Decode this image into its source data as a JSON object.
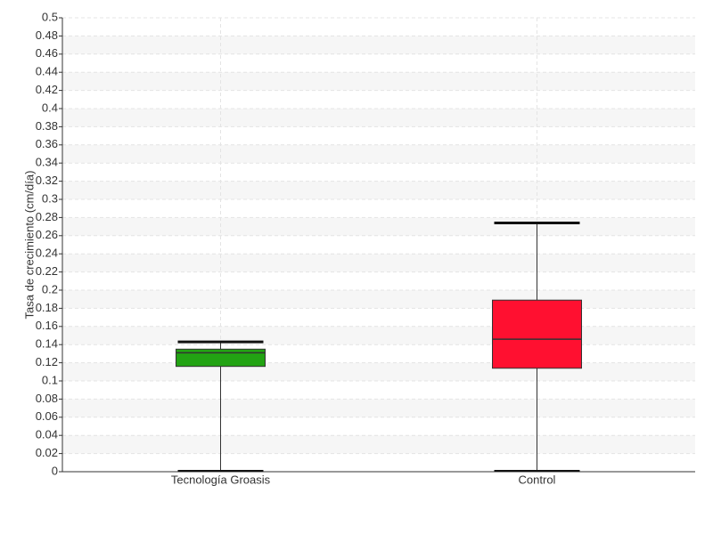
{
  "chart_data": {
    "type": "box",
    "y_label": "Tasa de crecimiento (cm/día)",
    "categories": [
      "Tecnología Groasis",
      "Control"
    ],
    "boxes": [
      {
        "min": 0,
        "q1": 0.116,
        "median": 0.131,
        "q3": 0.135,
        "max": 0.143,
        "color": "#22a313"
      },
      {
        "min": 0,
        "q1": 0.114,
        "median": 0.146,
        "q3": 0.189,
        "max": 0.274,
        "color": "#ff1030"
      }
    ],
    "ylim": [
      0,
      0.5
    ],
    "yticks": [
      0,
      0.02,
      0.04,
      0.06,
      0.08,
      0.1,
      0.12,
      0.14,
      0.16,
      0.18,
      0.2,
      0.22,
      0.24,
      0.26,
      0.28,
      0.3,
      0.32,
      0.34,
      0.36,
      0.38,
      0.4,
      0.42,
      0.44,
      0.46,
      0.48,
      0.5
    ],
    "grid": true
  }
}
